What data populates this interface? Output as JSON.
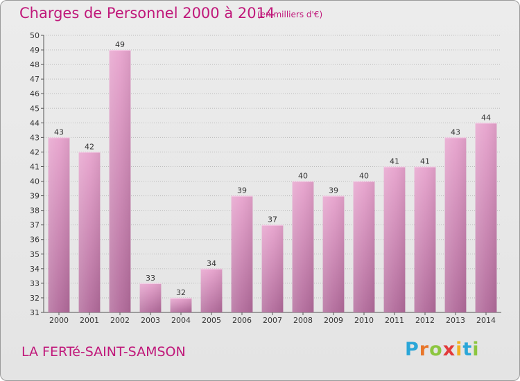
{
  "title": "Charges de Personnel 2000 à 2014",
  "subtitle": "(en milliers d'€)",
  "location": "LA FERTé-SAINT-SAMSON",
  "logo": {
    "letters": [
      "P",
      "r",
      "o",
      "x",
      "i",
      "t",
      "i"
    ],
    "colors": [
      "#2aa6d8",
      "#e8762b",
      "#8cc63f",
      "#e23a3a",
      "#f2b01e",
      "#2aa6d8",
      "#8cc63f"
    ]
  },
  "colors": {
    "bar_top": "#e7a3cd",
    "bar_bottom": "#b16a9a",
    "text": "#333333",
    "grid": "#bbbbbb",
    "accent": "#c0187a"
  },
  "chart_data": {
    "type": "bar",
    "categories": [
      "2000",
      "2001",
      "2002",
      "2003",
      "2004",
      "2005",
      "2006",
      "2007",
      "2008",
      "2009",
      "2010",
      "2011",
      "2012",
      "2013",
      "2014"
    ],
    "values": [
      43,
      42,
      49,
      33,
      32,
      34,
      39,
      37,
      40,
      39,
      40,
      41,
      41,
      43,
      44
    ],
    "ylim": [
      31,
      50
    ],
    "yticks": [
      31,
      32,
      33,
      34,
      35,
      36,
      37,
      38,
      39,
      40,
      41,
      42,
      43,
      44,
      45,
      46,
      47,
      48,
      49,
      50
    ],
    "grid": true,
    "data_labels": true
  }
}
